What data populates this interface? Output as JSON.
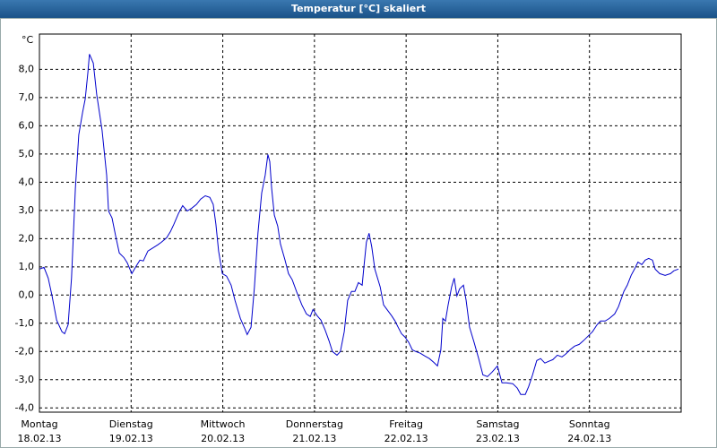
{
  "chart_data": {
    "type": "line",
    "title": "Temperatur [°C] skaliert",
    "y_label": "°C",
    "xlim": [
      0,
      168
    ],
    "ylim": [
      -4.15,
      9.25
    ],
    "grid": true,
    "xticks": [
      {
        "value": 0,
        "label": "Montag",
        "date": "18.02.13"
      },
      {
        "value": 24,
        "label": "Dienstag",
        "date": "19.02.13"
      },
      {
        "value": 48,
        "label": "Mittwoch",
        "date": "20.02.13"
      },
      {
        "value": 72,
        "label": "Donnerstag",
        "date": "21.02.13"
      },
      {
        "value": 96,
        "label": "Freitag",
        "date": "22.02.13"
      },
      {
        "value": 120,
        "label": "Samstag",
        "date": "23.02.13"
      },
      {
        "value": 144,
        "label": "Sonntag",
        "date": "24.02.13"
      }
    ],
    "yticks": [
      {
        "value": 8,
        "label": "8,0"
      },
      {
        "value": 7,
        "label": "7,0"
      },
      {
        "value": 6,
        "label": "6,0"
      },
      {
        "value": 5,
        "label": "5,0"
      },
      {
        "value": 4,
        "label": "4,0"
      },
      {
        "value": 3,
        "label": "3,0"
      },
      {
        "value": 2,
        "label": "2,0"
      },
      {
        "value": 1,
        "label": "1,0"
      },
      {
        "value": 0,
        "label": "0,0"
      },
      {
        "value": -1,
        "label": "-1,0"
      },
      {
        "value": -2,
        "label": "-2,0"
      },
      {
        "value": -3,
        "label": "-3,0"
      },
      {
        "value": -4,
        "label": "-4,0"
      }
    ],
    "series": [
      {
        "color": "#0000cc",
        "x": [
          0.0,
          1.2,
          2.3,
          3.3,
          4.5,
          5.9,
          6.6,
          7.5,
          8.4,
          9.4,
          10.3,
          11.3,
          12.0,
          12.7,
          13.1,
          14.1,
          15.0,
          16.4,
          17.6,
          18.1,
          19.0,
          19.9,
          20.9,
          22.1,
          23.0,
          24.2,
          25.3,
          26.3,
          27.2,
          28.4,
          29.8,
          31.0,
          31.9,
          33.3,
          34.3,
          35.2,
          36.4,
          37.5,
          38.7,
          39.9,
          41.1,
          42.2,
          43.4,
          44.6,
          45.5,
          46.2,
          46.9,
          47.9,
          49.0,
          50.2,
          51.2,
          52.6,
          53.7,
          54.4,
          55.4,
          56.3,
          57.2,
          58.2,
          59.1,
          59.8,
          60.3,
          60.8,
          61.5,
          62.4,
          63.1,
          64.3,
          65.2,
          66.2,
          67.3,
          68.7,
          69.9,
          70.9,
          71.6,
          72.7,
          73.7,
          74.8,
          75.8,
          76.7,
          77.9,
          78.8,
          79.8,
          80.7,
          81.7,
          82.6,
          83.5,
          84.5,
          84.9,
          85.6,
          86.3,
          87.0,
          87.8,
          89.2,
          90.1,
          91.0,
          92.2,
          93.1,
          93.9,
          94.8,
          95.7,
          96.7,
          97.6,
          98.5,
          99.7,
          100.9,
          102.1,
          103.2,
          104.2,
          105.1,
          105.6,
          106.3,
          107.0,
          107.9,
          108.6,
          109.3,
          110.0,
          111.0,
          111.7,
          112.6,
          113.8,
          115.0,
          116.1,
          117.3,
          118.5,
          119.9,
          121.1,
          122.2,
          123.9,
          125.1,
          126.0,
          127.2,
          128.1,
          129.1,
          130.2,
          131.2,
          132.3,
          133.3,
          134.4,
          135.6,
          136.8,
          137.7,
          138.9,
          140.1,
          141.3,
          142.4,
          143.6,
          144.8,
          146.0,
          146.9,
          148.1,
          149.2,
          150.6,
          151.6,
          153.0,
          153.9,
          154.9,
          155.8,
          156.7,
          157.7,
          158.6,
          159.5,
          160.5,
          161.2,
          162.4,
          163.8,
          165.2,
          166.1,
          167.3
        ],
        "values": [
          0.92,
          0.98,
          0.6,
          -0.03,
          -0.89,
          -1.3,
          -1.37,
          -1.05,
          0.6,
          3.78,
          5.68,
          6.48,
          6.95,
          7.9,
          8.54,
          8.22,
          7.11,
          5.84,
          4.25,
          2.98,
          2.73,
          2.13,
          1.49,
          1.33,
          1.14,
          0.76,
          1.02,
          1.24,
          1.21,
          1.56,
          1.68,
          1.78,
          1.87,
          2.03,
          2.25,
          2.51,
          2.89,
          3.17,
          2.98,
          3.08,
          3.21,
          3.4,
          3.52,
          3.46,
          3.21,
          2.51,
          1.56,
          0.76,
          0.67,
          0.35,
          -0.19,
          -0.83,
          -1.17,
          -1.4,
          -1.14,
          0.29,
          2.19,
          3.62,
          4.25,
          4.98,
          4.73,
          3.78,
          2.83,
          2.44,
          1.81,
          1.24,
          0.76,
          0.54,
          0.13,
          -0.35,
          -0.67,
          -0.76,
          -0.51,
          -0.73,
          -0.89,
          -1.24,
          -1.62,
          -2.0,
          -2.13,
          -2.0,
          -1.3,
          -0.19,
          0.13,
          0.13,
          0.44,
          0.35,
          0.92,
          1.87,
          2.19,
          1.71,
          0.92,
          0.29,
          -0.35,
          -0.51,
          -0.73,
          -0.92,
          -1.14,
          -1.37,
          -1.49,
          -1.68,
          -1.94,
          -2.0,
          -2.06,
          -2.16,
          -2.25,
          -2.38,
          -2.51,
          -1.94,
          -0.83,
          -0.92,
          -0.35,
          0.29,
          0.6,
          -0.03,
          0.22,
          0.35,
          -0.19,
          -1.14,
          -1.68,
          -2.25,
          -2.83,
          -2.89,
          -2.73,
          -2.51,
          -3.11,
          -3.11,
          -3.14,
          -3.3,
          -3.52,
          -3.52,
          -3.24,
          -2.83,
          -2.32,
          -2.25,
          -2.41,
          -2.35,
          -2.29,
          -2.13,
          -2.19,
          -2.1,
          -1.94,
          -1.81,
          -1.75,
          -1.62,
          -1.46,
          -1.3,
          -1.05,
          -0.92,
          -0.92,
          -0.83,
          -0.67,
          -0.41,
          0.13,
          0.35,
          0.7,
          0.92,
          1.17,
          1.08,
          1.24,
          1.3,
          1.24,
          0.92,
          0.76,
          0.7,
          0.76,
          0.86,
          0.92
        ]
      }
    ]
  }
}
